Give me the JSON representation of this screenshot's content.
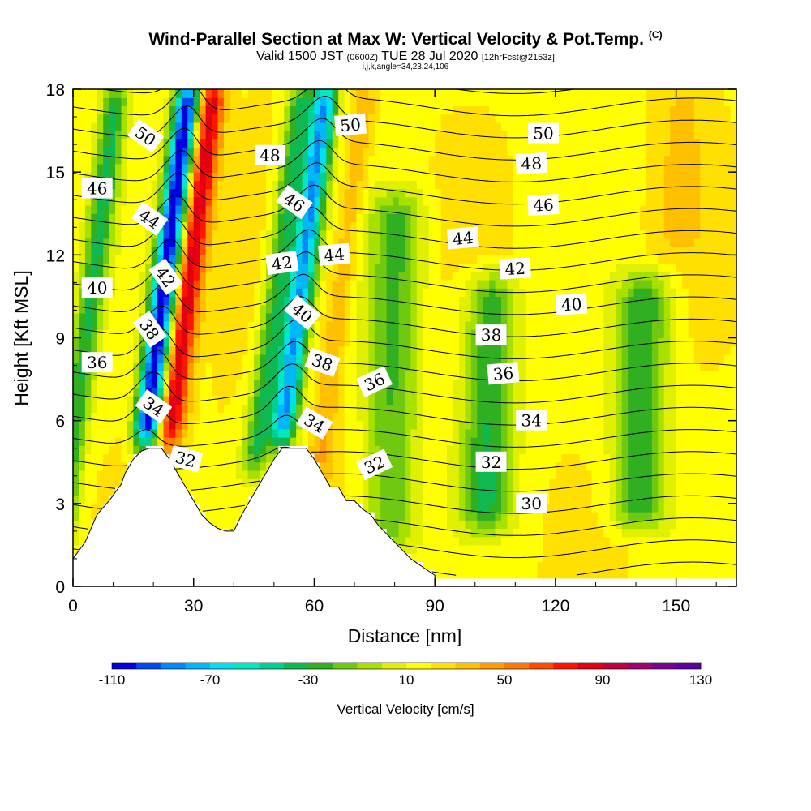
{
  "title": "Wind-Parallel Section at Max W: Vertical Velocity & Pot.Temp.",
  "copyright": "(C)",
  "subtitle_valid": "Valid 1500 JST",
  "subtitle_z": "(0600Z)",
  "subtitle_date": "TUE 28 Jul 2020",
  "subtitle_fcst": "[12hrFcst@2153z]",
  "subtitle2": "i,j,k,angle=34,23,24,106",
  "chart_data": {
    "type": "heatmap",
    "description_fields": "filled vertical velocity with potential temperature contour overlay",
    "xlabel": "Distance [nm]",
    "ylabel": "Height [Kft MSL]",
    "xlim": [
      0,
      165
    ],
    "ylim": [
      0,
      18
    ],
    "xticks": [
      0,
      30,
      60,
      90,
      120,
      150
    ],
    "yticks": [
      0,
      3,
      6,
      9,
      12,
      15,
      18
    ],
    "colorbar": {
      "label": "Vertical Velocity [cm/s]",
      "min": -110,
      "max": 130,
      "step": 10,
      "tick_labels": [
        -110,
        -70,
        -30,
        10,
        50,
        90,
        130
      ],
      "colors": [
        "#0000e0",
        "#0048f0",
        "#0088f8",
        "#00b8f8",
        "#00e0f0",
        "#00e8c0",
        "#00d090",
        "#10b850",
        "#30b020",
        "#70c810",
        "#a8e000",
        "#e0f000",
        "#ffff00",
        "#ffe000",
        "#ffc000",
        "#ff9c00",
        "#ff7800",
        "#ff4c00",
        "#ff1400",
        "#e40010",
        "#c00040",
        "#a00070",
        "#7c0090",
        "#5c00a0"
      ]
    },
    "velocity_features": [
      {
        "distance_nm": 4,
        "height_min": 1,
        "height_max": 18,
        "velocity": -30
      },
      {
        "distance_nm": 17,
        "height_min": 4,
        "height_max": 18,
        "velocity": 20
      },
      {
        "distance_nm": 22,
        "height_min": 5,
        "height_max": 18,
        "velocity": -110
      },
      {
        "distance_nm": 28,
        "height_min": 5,
        "height_max": 18,
        "velocity": 90
      },
      {
        "distance_nm": 40,
        "height_min": 3,
        "height_max": 18,
        "velocity": 20
      },
      {
        "distance_nm": 50,
        "height_min": 4,
        "height_max": 18,
        "velocity": -30
      },
      {
        "distance_nm": 56,
        "height_min": 5,
        "height_max": 18,
        "velocity": -80
      },
      {
        "distance_nm": 66,
        "height_min": 3,
        "height_max": 18,
        "velocity": 40
      },
      {
        "distance_nm": 80,
        "height_min": 1,
        "height_max": 14,
        "velocity": -20
      },
      {
        "distance_nm": 104,
        "height_min": 2,
        "height_max": 11,
        "velocity": -30
      },
      {
        "distance_nm": 142,
        "height_min": 2,
        "height_max": 11,
        "velocity": -30
      },
      {
        "distance_nm": 150,
        "height_min": 12,
        "height_max": 18,
        "velocity": 30
      }
    ],
    "terrain_profile": {
      "distance_nm": [
        0,
        3,
        6,
        9,
        12,
        13,
        15,
        17,
        19,
        20,
        22,
        24,
        26,
        28,
        30,
        32,
        34,
        36,
        38,
        40,
        42,
        44,
        46,
        48,
        50,
        52,
        54,
        56,
        58,
        60,
        62,
        64,
        66,
        68,
        70,
        72,
        74,
        76,
        78,
        80,
        82,
        84,
        86,
        88,
        90
      ],
      "height_kft": [
        1.0,
        1.6,
        2.6,
        3.1,
        3.7,
        4.1,
        4.6,
        4.9,
        5.0,
        5.0,
        5.0,
        4.6,
        4.1,
        3.6,
        3.1,
        2.6,
        2.3,
        2.1,
        2.0,
        2.0,
        2.6,
        3.1,
        3.6,
        4.1,
        4.6,
        5.0,
        5.0,
        5.0,
        5.0,
        4.6,
        4.1,
        3.6,
        3.6,
        3.1,
        3.1,
        2.8,
        2.6,
        2.2,
        1.9,
        1.6,
        1.3,
        1.0,
        0.8,
        0.6,
        0.4
      ]
    },
    "contours": {
      "variable": "Potential Temperature",
      "levels": [
        30,
        31,
        32,
        33,
        34,
        35,
        36,
        37,
        38,
        39,
        40,
        41,
        42,
        43,
        44,
        45,
        46,
        47,
        48,
        49,
        50,
        51,
        52
      ],
      "labels": [
        {
          "text": "50",
          "x": 18,
          "y": 16.3,
          "angle": 35
        },
        {
          "text": "46",
          "x": 6,
          "y": 14.4,
          "angle": 0
        },
        {
          "text": "44",
          "x": 19,
          "y": 13.3,
          "angle": 35
        },
        {
          "text": "42",
          "x": 23,
          "y": 11.2,
          "angle": 55
        },
        {
          "text": "40",
          "x": 6,
          "y": 10.8,
          "angle": 0
        },
        {
          "text": "38",
          "x": 19,
          "y": 9.3,
          "angle": 55
        },
        {
          "text": "36",
          "x": 6,
          "y": 8.1,
          "angle": 0
        },
        {
          "text": "34",
          "x": 20,
          "y": 6.5,
          "angle": 35
        },
        {
          "text": "32",
          "x": 28,
          "y": 4.6,
          "angle": 15
        },
        {
          "text": "48",
          "x": 49,
          "y": 15.6,
          "angle": 0
        },
        {
          "text": "46",
          "x": 55,
          "y": 13.9,
          "angle": 35
        },
        {
          "text": "42",
          "x": 52,
          "y": 11.7,
          "angle": -8
        },
        {
          "text": "44",
          "x": 65,
          "y": 12.0,
          "angle": -5
        },
        {
          "text": "40",
          "x": 57,
          "y": 9.9,
          "angle": 40
        },
        {
          "text": "38",
          "x": 62,
          "y": 8.1,
          "angle": 20
        },
        {
          "text": "34",
          "x": 60,
          "y": 5.9,
          "angle": 30
        },
        {
          "text": "50",
          "x": 69,
          "y": 16.7,
          "angle": -5
        },
        {
          "text": "36",
          "x": 75,
          "y": 7.4,
          "angle": -25
        },
        {
          "text": "32",
          "x": 75,
          "y": 4.4,
          "angle": -25
        },
        {
          "text": "44",
          "x": 97,
          "y": 12.6,
          "angle": -5
        },
        {
          "text": "38",
          "x": 104,
          "y": 9.1,
          "angle": 0
        },
        {
          "text": "36",
          "x": 107,
          "y": 7.7,
          "angle": -5
        },
        {
          "text": "32",
          "x": 104,
          "y": 4.5,
          "angle": 0
        },
        {
          "text": "50",
          "x": 117,
          "y": 16.4,
          "angle": 0
        },
        {
          "text": "48",
          "x": 114,
          "y": 15.3,
          "angle": -3
        },
        {
          "text": "46",
          "x": 117,
          "y": 13.8,
          "angle": -3
        },
        {
          "text": "42",
          "x": 110,
          "y": 11.5,
          "angle": -3
        },
        {
          "text": "40",
          "x": 124,
          "y": 10.2,
          "angle": -3
        },
        {
          "text": "34",
          "x": 114,
          "y": 6.0,
          "angle": 0
        },
        {
          "text": "30",
          "x": 114,
          "y": 3.0,
          "angle": 0
        }
      ]
    }
  }
}
